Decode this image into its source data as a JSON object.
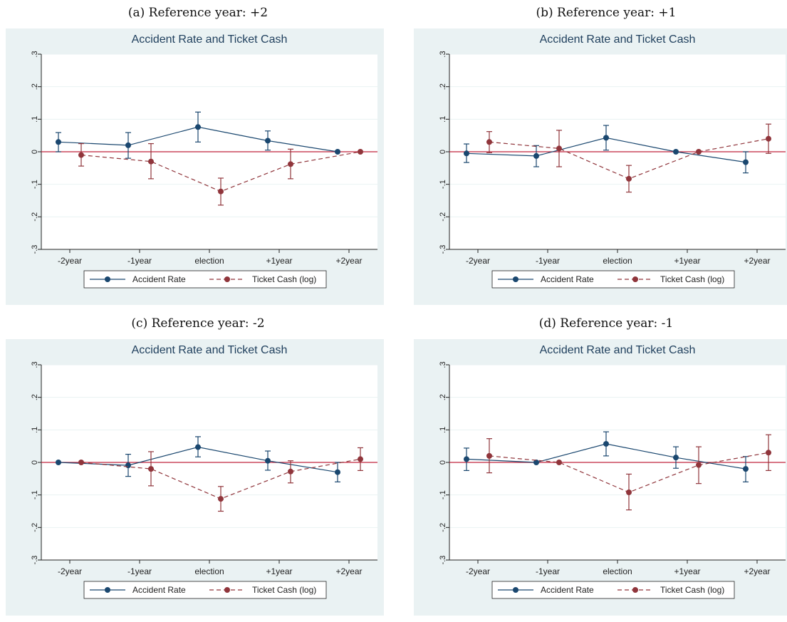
{
  "colors": {
    "outer_bg": "#eaf2f3",
    "plot_bg": "#ffffff",
    "grid": "#eaf2f3",
    "zero_line": "#c0243c",
    "accident": "#1a476f",
    "ticket": "#90353b",
    "title": "#1e3e5c"
  },
  "chart_data": [
    {
      "type": "line",
      "caption": "(a) Reference year: +2",
      "title": "Accident Rate and Ticket Cash",
      "categories": [
        "-2year",
        "-1year",
        "election",
        "+1year",
        "+2year"
      ],
      "ylim": [
        -0.3,
        0.3
      ],
      "yticks": [
        ".3",
        ".2",
        ".1",
        "0",
        "-.1",
        "-.2",
        "-.3"
      ],
      "ytick_values": [
        0.3,
        0.2,
        0.1,
        0,
        -0.1,
        -0.2,
        -0.3
      ],
      "grid": true,
      "legend_position": "bottom",
      "series": [
        {
          "name": "Accident Rate",
          "style": "solid",
          "values": [
            0.03,
            0.02,
            0.076,
            0.034,
            0.0
          ],
          "ci_low": [
            0.0,
            -0.02,
            0.03,
            0.005,
            0.0
          ],
          "ci_high": [
            0.059,
            0.059,
            0.122,
            0.064,
            0.0
          ]
        },
        {
          "name": "Ticket Cash (log)",
          "style": "dashed",
          "values": [
            -0.01,
            -0.03,
            -0.122,
            -0.038,
            0.0
          ],
          "ci_low": [
            -0.044,
            -0.083,
            -0.164,
            -0.083,
            0.0
          ],
          "ci_high": [
            0.025,
            0.025,
            -0.081,
            0.008,
            0.0
          ]
        }
      ]
    },
    {
      "type": "line",
      "caption": "(b) Reference year: +1",
      "title": "Accident Rate and Ticket Cash",
      "categories": [
        "-2year",
        "-1year",
        "election",
        "+1year",
        "+2year"
      ],
      "ylim": [
        -0.3,
        0.3
      ],
      "yticks": [
        ".3",
        ".2",
        ".1",
        "0",
        "-.1",
        "-.2",
        "-.3"
      ],
      "ytick_values": [
        0.3,
        0.2,
        0.1,
        0,
        -0.1,
        -0.2,
        -0.3
      ],
      "grid": true,
      "legend_position": "bottom",
      "series": [
        {
          "name": "Accident Rate",
          "style": "solid",
          "values": [
            -0.005,
            -0.013,
            0.043,
            0.0,
            -0.032
          ],
          "ci_low": [
            -0.033,
            -0.046,
            0.005,
            0.0,
            -0.065
          ],
          "ci_high": [
            0.024,
            0.019,
            0.081,
            0.0,
            0.0
          ]
        },
        {
          "name": "Ticket Cash (log)",
          "style": "dashed",
          "values": [
            0.03,
            0.01,
            -0.083,
            0.0,
            0.04
          ],
          "ci_low": [
            -0.003,
            -0.046,
            -0.124,
            0.0,
            -0.005
          ],
          "ci_high": [
            0.062,
            0.066,
            -0.042,
            0.0,
            0.085
          ]
        }
      ]
    },
    {
      "type": "line",
      "caption": "(c) Reference year: -2",
      "title": "Accident Rate and Ticket Cash",
      "categories": [
        "-2year",
        "-1year",
        "election",
        "+1year",
        "+2year"
      ],
      "ylim": [
        -0.3,
        0.3
      ],
      "yticks": [
        ".3",
        ".2",
        ".1",
        "0",
        "-.1",
        "-.2",
        "-.3"
      ],
      "ytick_values": [
        0.3,
        0.2,
        0.1,
        0,
        -0.1,
        -0.2,
        -0.3
      ],
      "grid": true,
      "legend_position": "bottom",
      "series": [
        {
          "name": "Accident Rate",
          "style": "solid",
          "values": [
            0.0,
            -0.009,
            0.047,
            0.005,
            -0.03
          ],
          "ci_low": [
            0.0,
            -0.043,
            0.017,
            -0.024,
            -0.06
          ],
          "ci_high": [
            0.0,
            0.025,
            0.079,
            0.035,
            0.0
          ]
        },
        {
          "name": "Ticket Cash (log)",
          "style": "dashed",
          "values": [
            0.0,
            -0.02,
            -0.112,
            -0.028,
            0.01
          ],
          "ci_low": [
            0.0,
            -0.072,
            -0.15,
            -0.063,
            -0.025
          ],
          "ci_high": [
            0.0,
            0.033,
            -0.074,
            0.005,
            0.045
          ]
        }
      ]
    },
    {
      "type": "line",
      "caption": "(d) Reference year: -1",
      "title": "Accident Rate and Ticket Cash",
      "categories": [
        "-2year",
        "-1year",
        "election",
        "+1year",
        "+2year"
      ],
      "ylim": [
        -0.3,
        0.3
      ],
      "yticks": [
        ".3",
        ".2",
        ".1",
        "0",
        "-.1",
        "-.2",
        "-.3"
      ],
      "ytick_values": [
        0.3,
        0.2,
        0.1,
        0,
        -0.1,
        -0.2,
        -0.3
      ],
      "grid": true,
      "legend_position": "bottom",
      "series": [
        {
          "name": "Accident Rate",
          "style": "solid",
          "values": [
            0.01,
            0.0,
            0.057,
            0.015,
            -0.02
          ],
          "ci_low": [
            -0.025,
            0.0,
            0.02,
            -0.018,
            -0.06
          ],
          "ci_high": [
            0.044,
            0.0,
            0.094,
            0.048,
            0.018
          ]
        },
        {
          "name": "Ticket Cash (log)",
          "style": "dashed",
          "values": [
            0.02,
            0.0,
            -0.092,
            -0.008,
            0.03
          ],
          "ci_low": [
            -0.032,
            0.0,
            -0.146,
            -0.065,
            -0.025
          ],
          "ci_high": [
            0.073,
            0.0,
            -0.036,
            0.048,
            0.085
          ]
        }
      ]
    }
  ]
}
